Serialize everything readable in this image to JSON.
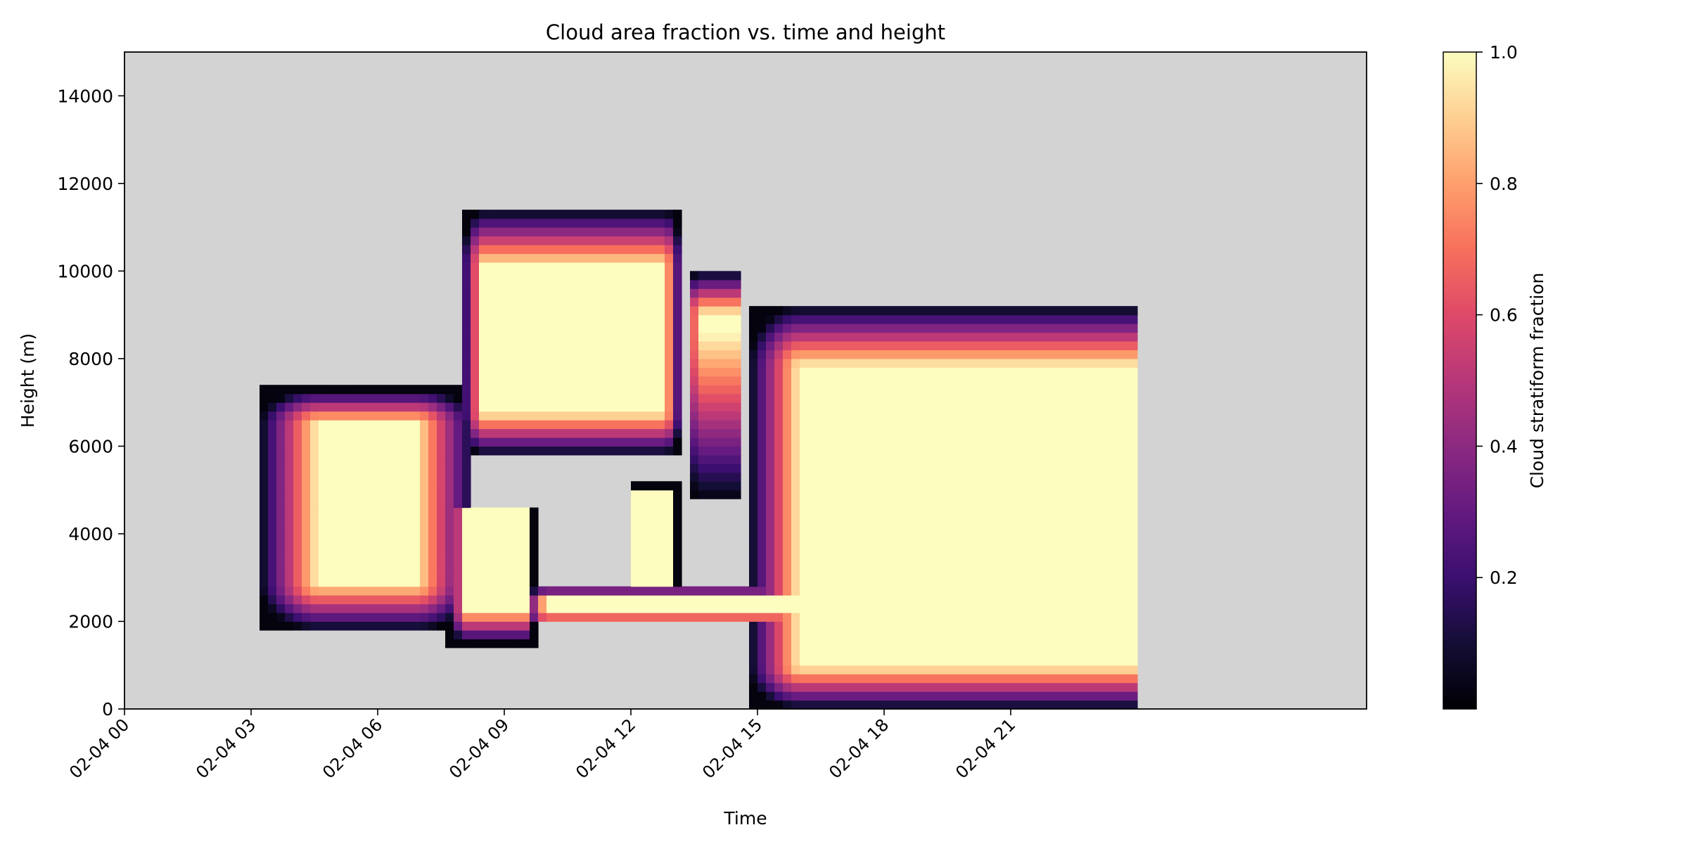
{
  "chart_data": {
    "type": "heatmap",
    "title": "Cloud area fraction vs. time and height",
    "xlabel": "Time",
    "ylabel": "Height (m)",
    "colorbar_label": "Cloud stratiform fraction",
    "colormap": "magma",
    "missing_color": "#d3d3d3",
    "xlim": [
      "02-04 00",
      "02-05 00"
    ],
    "ylim": [
      0,
      15000
    ],
    "x_ticks": [
      {
        "value": 0,
        "label": "02-04 00"
      },
      {
        "value": 3,
        "label": "02-04 03"
      },
      {
        "value": 6,
        "label": "02-04 06"
      },
      {
        "value": 9,
        "label": "02-04 09"
      },
      {
        "value": 12,
        "label": "02-04 12"
      },
      {
        "value": 15,
        "label": "02-04 15"
      },
      {
        "value": 18,
        "label": "02-04 18"
      },
      {
        "value": 21,
        "label": "02-04 21"
      }
    ],
    "y_ticks": [
      0,
      2000,
      4000,
      6000,
      8000,
      10000,
      12000,
      14000
    ],
    "colorbar_range": [
      0,
      1
    ],
    "colorbar_ticks": [
      0.2,
      0.4,
      0.6,
      0.8,
      1.0
    ],
    "time_unit": "hours since 02-04 00",
    "cloud_regions": [
      {
        "t": [
          3.2,
          8.3
        ],
        "h": [
          1800,
          7300
        ],
        "core": [
          4.6,
          6.9,
          2900,
          6500
        ],
        "peak": 1.0
      },
      {
        "t": [
          7.7,
          9.7
        ],
        "h": [
          1500,
          4600
        ],
        "core": [
          8.1,
          9.5,
          2300,
          4600
        ],
        "peak": 1.0
      },
      {
        "t": [
          8.0,
          13.2
        ],
        "h": [
          5800,
          11400
        ],
        "core": [
          8.5,
          12.8,
          6800,
          10100
        ],
        "peak": 1.0
      },
      {
        "t": [
          12.0,
          13.1
        ],
        "h": [
          2800,
          5100
        ],
        "core": [
          12.1,
          12.9,
          2800,
          5000
        ],
        "peak": 1.0
      },
      {
        "t": [
          13.3,
          14.6
        ],
        "h": [
          4800,
          10000
        ],
        "core": [
          13.6,
          14.5,
          8600,
          9000
        ],
        "peak": 1.0
      },
      {
        "t": [
          9.5,
          16.8
        ],
        "h": [
          2000,
          2800
        ],
        "core": [
          10.0,
          16.5,
          2150,
          2500
        ],
        "peak": 1.0
      },
      {
        "t": [
          14.8,
          24.0
        ],
        "h": [
          0,
          9200
        ],
        "core": [
          16.0,
          24.0,
          1000,
          7800
        ],
        "peak": 1.0
      }
    ]
  }
}
